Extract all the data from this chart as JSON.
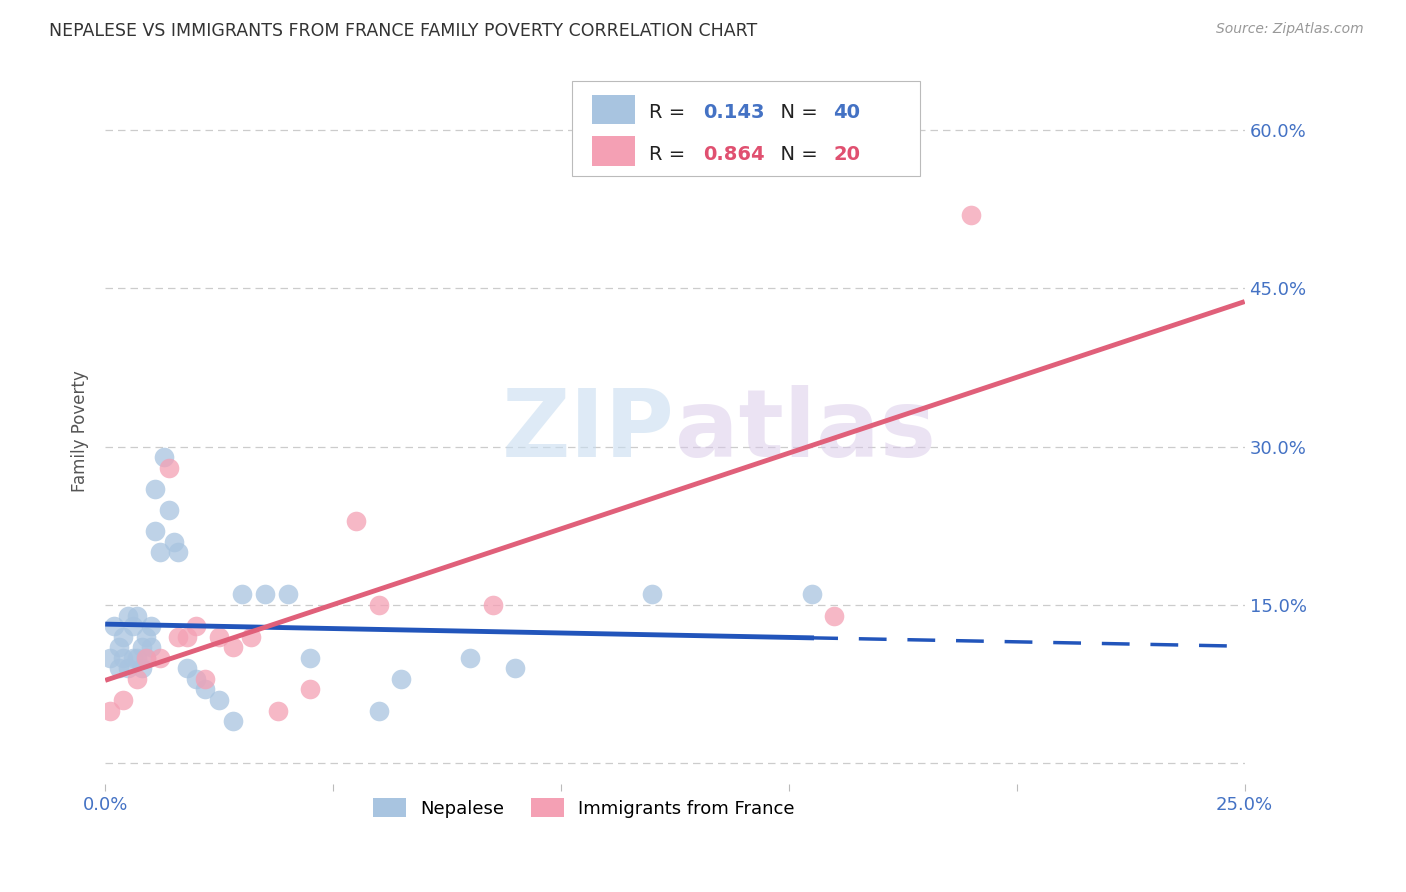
{
  "title": "NEPALESE VS IMMIGRANTS FROM FRANCE FAMILY POVERTY CORRELATION CHART",
  "source": "Source: ZipAtlas.com",
  "ylabel": "Family Poverty",
  "xlim": [
    0.0,
    0.25
  ],
  "ylim": [
    -0.02,
    0.65
  ],
  "yticks": [
    0.0,
    0.15,
    0.3,
    0.45,
    0.6
  ],
  "ytick_labels": [
    "",
    "15.0%",
    "30.0%",
    "45.0%",
    "60.0%"
  ],
  "xticks": [
    0.0,
    0.05,
    0.1,
    0.15,
    0.2,
    0.25
  ],
  "xtick_labels": [
    "0.0%",
    "",
    "",
    "",
    "",
    "25.0%"
  ],
  "nepalese_R": 0.143,
  "nepalese_N": 40,
  "france_R": 0.864,
  "france_N": 20,
  "nepalese_color": "#a8c4e0",
  "france_color": "#f4a0b4",
  "nepalese_line_color": "#2255bb",
  "france_line_color": "#e0607a",
  "grid_color": "#cccccc",
  "watermark_zip": "ZIP",
  "watermark_atlas": "atlas",
  "background_color": "#ffffff",
  "nepalese_x": [
    0.001,
    0.002,
    0.003,
    0.003,
    0.004,
    0.004,
    0.005,
    0.005,
    0.006,
    0.006,
    0.007,
    0.007,
    0.008,
    0.008,
    0.009,
    0.009,
    0.01,
    0.01,
    0.011,
    0.011,
    0.012,
    0.013,
    0.014,
    0.015,
    0.016,
    0.018,
    0.02,
    0.022,
    0.025,
    0.028,
    0.03,
    0.035,
    0.04,
    0.045,
    0.06,
    0.065,
    0.08,
    0.09,
    0.12,
    0.155
  ],
  "nepalese_y": [
    0.1,
    0.13,
    0.09,
    0.11,
    0.1,
    0.12,
    0.09,
    0.14,
    0.1,
    0.13,
    0.1,
    0.14,
    0.11,
    0.09,
    0.12,
    0.1,
    0.13,
    0.11,
    0.22,
    0.26,
    0.2,
    0.29,
    0.24,
    0.21,
    0.2,
    0.09,
    0.08,
    0.07,
    0.06,
    0.04,
    0.16,
    0.16,
    0.16,
    0.1,
    0.05,
    0.08,
    0.1,
    0.09,
    0.16,
    0.16
  ],
  "france_x": [
    0.001,
    0.004,
    0.007,
    0.009,
    0.012,
    0.014,
    0.016,
    0.018,
    0.02,
    0.022,
    0.025,
    0.028,
    0.032,
    0.038,
    0.045,
    0.055,
    0.06,
    0.085,
    0.16,
    0.19
  ],
  "france_y": [
    0.05,
    0.06,
    0.08,
    0.1,
    0.1,
    0.28,
    0.12,
    0.12,
    0.13,
    0.08,
    0.12,
    0.11,
    0.12,
    0.05,
    0.07,
    0.23,
    0.15,
    0.15,
    0.14,
    0.52
  ],
  "legend_R_color": "#4472c4",
  "legend_N_color": "#4472c4",
  "legend_val_nepalese_color": "#4472c4",
  "legend_val_france_color": "#e05070"
}
